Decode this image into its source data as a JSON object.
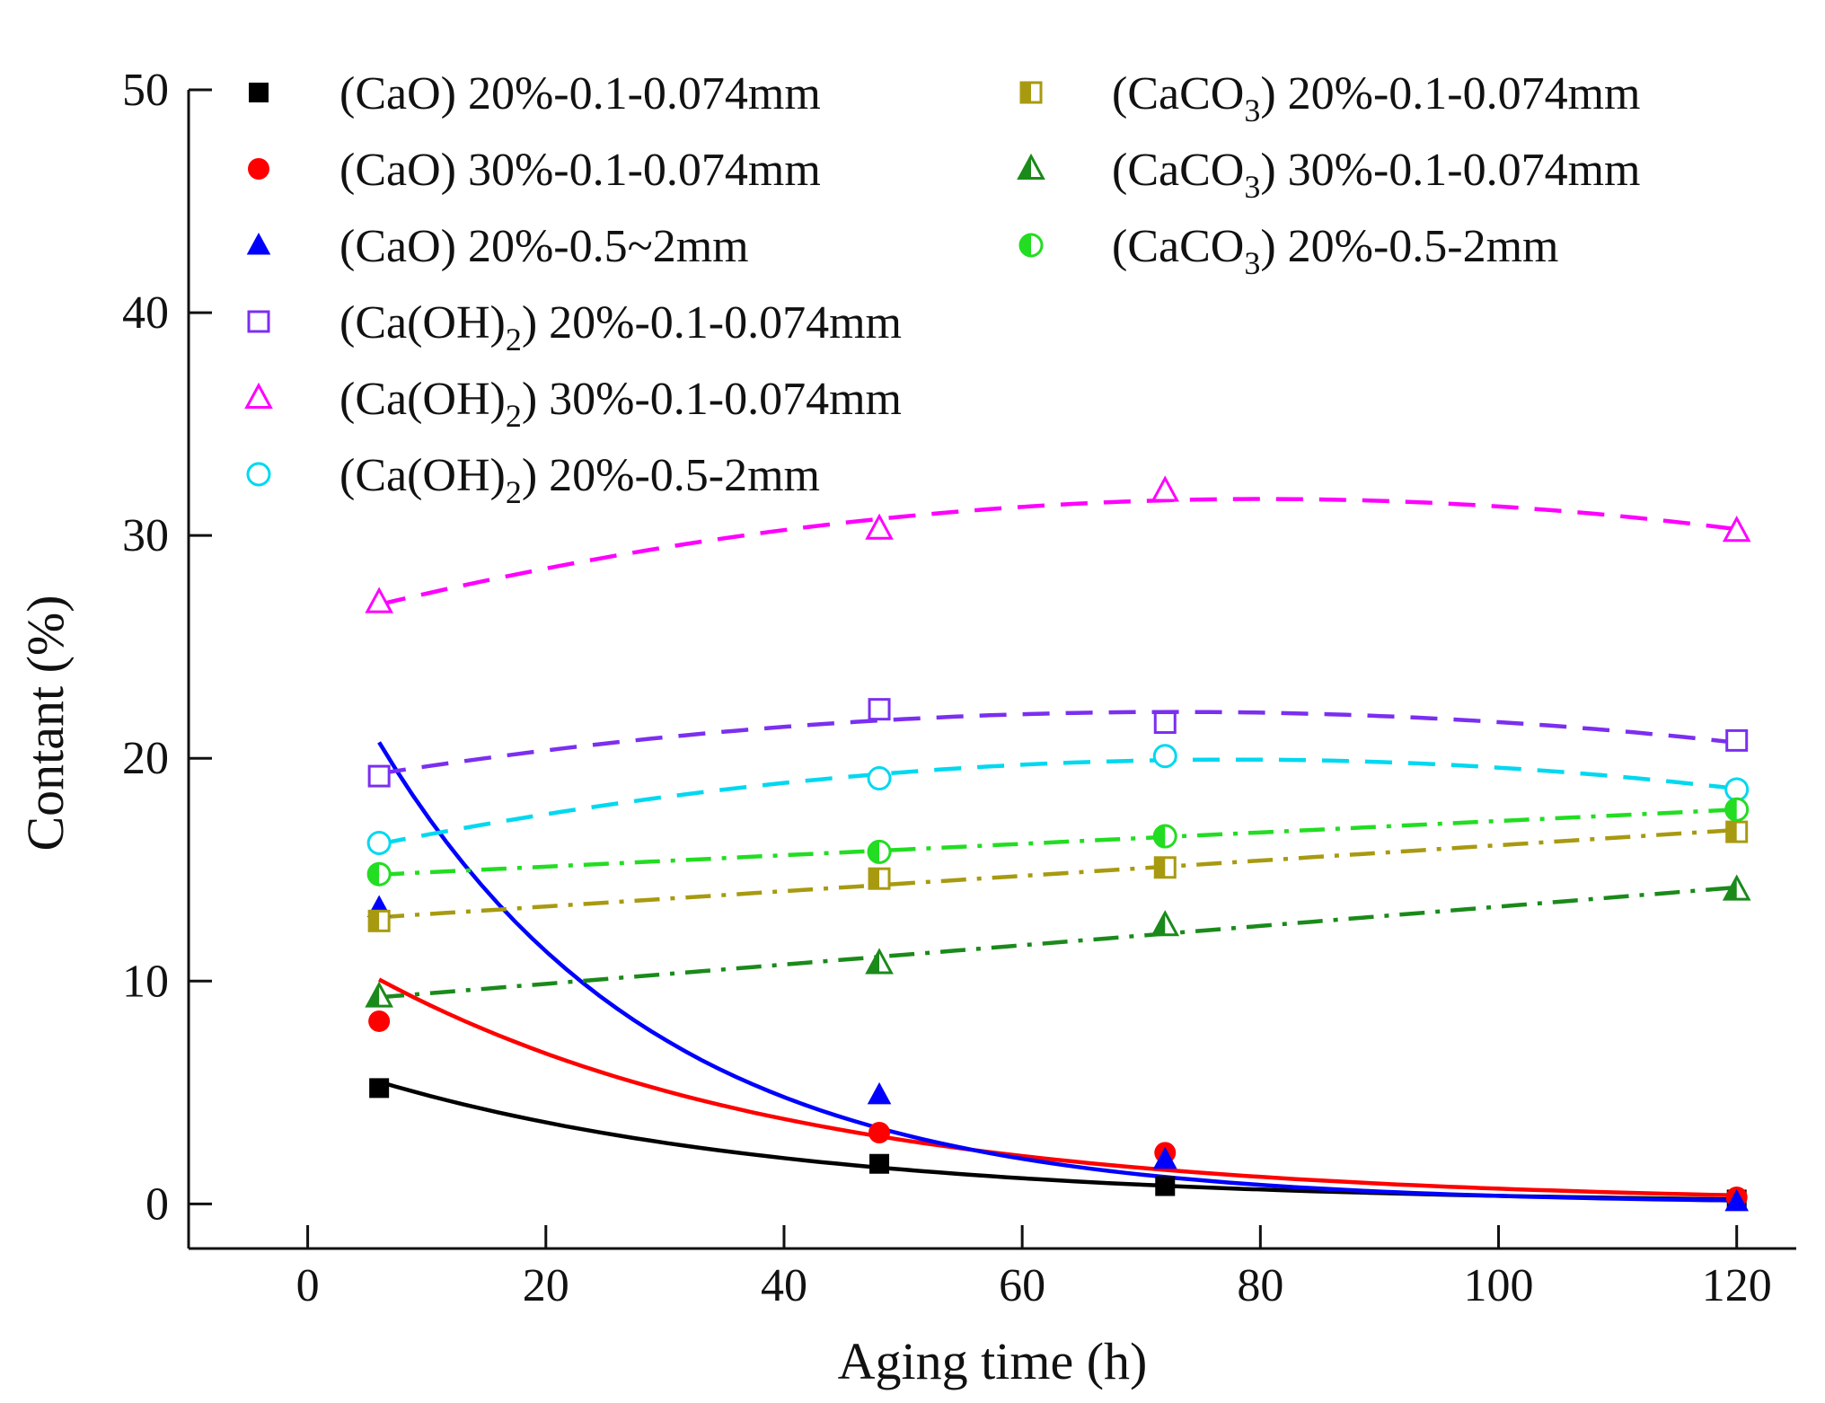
{
  "chart_data": {
    "type": "scatter",
    "xlabel": "Aging time (h)",
    "ylabel": "Contant (%)",
    "xlim": [
      -10,
      125
    ],
    "ylim": [
      -2,
      50
    ],
    "xticks": [
      0,
      20,
      40,
      60,
      80,
      100,
      120
    ],
    "yticks": [
      0,
      10,
      20,
      30,
      40,
      50
    ],
    "x": [
      6,
      48,
      72,
      120
    ],
    "legend_position": "top",
    "series": [
      {
        "id": "cao-20-fine",
        "compound": "(CaO)",
        "sub": "",
        "rest": " 20%-0.1-0.074mm",
        "values": [
          5.2,
          1.8,
          0.8,
          0.2
        ],
        "marker": "square-filled",
        "color": "#000000",
        "line": "solid",
        "fit": "exp"
      },
      {
        "id": "cao-30-fine",
        "compound": "(CaO)",
        "sub": "",
        "rest": " 30%-0.1-0.074mm",
        "values": [
          8.2,
          3.2,
          2.3,
          0.3
        ],
        "marker": "circle-filled",
        "color": "#ff0000",
        "line": "solid",
        "fit": "exp"
      },
      {
        "id": "cao-20-coarse",
        "compound": "(CaO)",
        "sub": "",
        "rest": " 20%-0.5~2mm",
        "values": [
          13.3,
          4.9,
          2.0,
          0.1
        ],
        "marker": "triangle-filled",
        "color": "#0000ff",
        "line": "solid",
        "fit": "exp"
      },
      {
        "id": "caoh2-20-fine",
        "compound": "(Ca(OH)",
        "sub": "2",
        "close": ")",
        "rest": " 20%-0.1-0.074mm",
        "values": [
          19.2,
          22.2,
          21.6,
          20.8
        ],
        "marker": "square-open",
        "color": "#7b2ff0",
        "line": "dashed",
        "fit": "quad"
      },
      {
        "id": "caoh2-30-fine",
        "compound": "(Ca(OH)",
        "sub": "2",
        "close": ")",
        "rest": " 30%-0.1-0.074mm",
        "values": [
          27.0,
          30.3,
          32.0,
          30.2
        ],
        "marker": "triangle-open",
        "color": "#ff00ff",
        "line": "dashed",
        "fit": "quad"
      },
      {
        "id": "caoh2-20-coarse",
        "compound": "(Ca(OH)",
        "sub": "2",
        "close": ")",
        "rest": " 20%-0.5-2mm",
        "values": [
          16.2,
          19.1,
          20.1,
          18.6
        ],
        "marker": "circle-open",
        "color": "#00d8f0",
        "line": "dashed",
        "fit": "quad"
      },
      {
        "id": "caco3-20-fine",
        "compound": "(CaCO",
        "sub": "3",
        "close": ")",
        "rest": " 20%-0.1-0.074mm",
        "values": [
          12.7,
          14.6,
          15.1,
          16.7
        ],
        "marker": "square-half",
        "color": "#a89a10",
        "line": "dashdot",
        "fit": "linear"
      },
      {
        "id": "caco3-30-fine",
        "compound": "(CaCO",
        "sub": "3",
        "close": ")",
        "rest": " 30%-0.1-0.074mm",
        "values": [
          9.3,
          10.8,
          12.5,
          14.1
        ],
        "marker": "triangle-half",
        "color": "#1a8a1a",
        "line": "dashdot",
        "fit": "linear"
      },
      {
        "id": "caco3-20-coarse",
        "compound": "(CaCO",
        "sub": "3",
        "close": ")",
        "rest": " 20%-0.5-2mm",
        "values": [
          14.8,
          15.8,
          16.5,
          17.7
        ],
        "marker": "circle-half",
        "color": "#22dd22",
        "line": "dashdot",
        "fit": "linear"
      }
    ]
  }
}
